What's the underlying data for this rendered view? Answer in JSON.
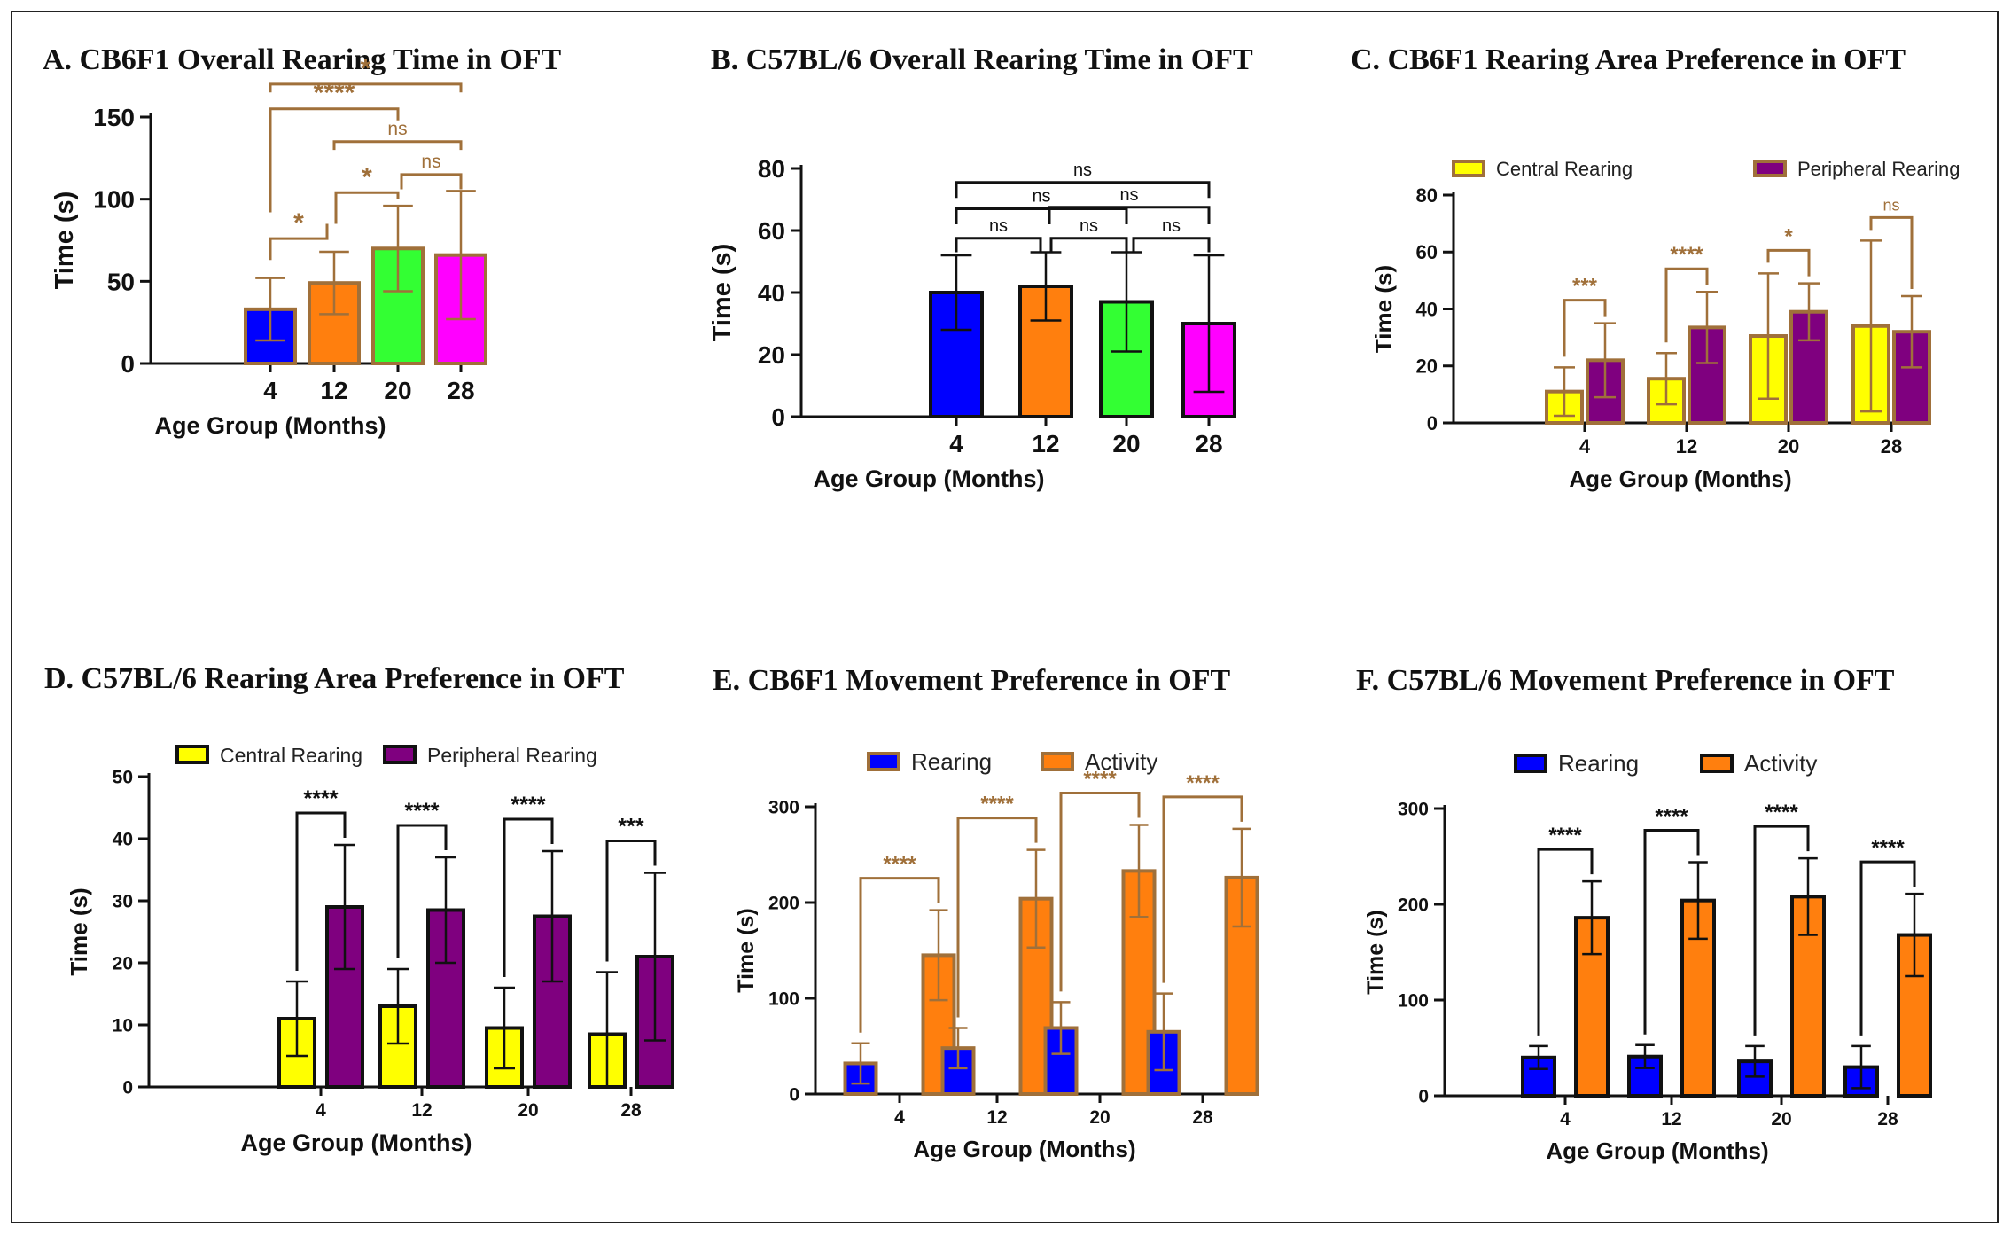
{
  "chart_data": [
    {
      "id": "A",
      "type": "bar",
      "title": "A.  CB6F1 Overall Rearing Time in OFT",
      "xlabel": "Age Group (Months)",
      "ylabel": "Time (s)",
      "ylim": [
        0,
        150
      ],
      "yticks": [
        "0",
        "50",
        "100",
        "150"
      ],
      "categories": [
        "4",
        "12",
        "20",
        "28"
      ],
      "values": [
        33,
        49,
        70,
        66
      ],
      "errors": [
        19,
        19,
        26,
        39
      ],
      "bar_colors": [
        "#0000ff",
        "#ff7f0e",
        "#33ff33",
        "#ff00ff"
      ],
      "bar_border": "#a0703a",
      "sig_color": "#a0703a",
      "comparisons": [
        {
          "a": 0,
          "b": 1,
          "label": "*"
        },
        {
          "a": 1,
          "b": 2,
          "label": "*"
        },
        {
          "a": 2,
          "b": 3,
          "label": "ns"
        },
        {
          "a": 1,
          "b": 3,
          "label": "ns"
        },
        {
          "a": 0,
          "b": 2,
          "label": "****"
        },
        {
          "a": 0,
          "b": 3,
          "label": "*"
        }
      ]
    },
    {
      "id": "B",
      "type": "bar",
      "title": "B.  C57BL/6 Overall Rearing Time in OFT",
      "xlabel": "Age Group (Months)",
      "ylabel": "Time (s)",
      "ylim": [
        0,
        80
      ],
      "yticks": [
        "0",
        "20",
        "40",
        "60",
        "80"
      ],
      "categories": [
        "4",
        "12",
        "20",
        "28"
      ],
      "values": [
        40,
        42,
        37,
        30
      ],
      "errors": [
        12,
        11,
        16,
        22
      ],
      "bar_colors": [
        "#0000ff",
        "#ff7f0e",
        "#33ff33",
        "#ff00ff"
      ],
      "bar_border": "#111111",
      "sig_color": "#111111",
      "comparisons": [
        {
          "a": 0,
          "b": 1,
          "label": "ns"
        },
        {
          "a": 1,
          "b": 2,
          "label": "ns"
        },
        {
          "a": 2,
          "b": 3,
          "label": "ns"
        },
        {
          "a": 0,
          "b": 2,
          "label": "ns"
        },
        {
          "a": 1,
          "b": 3,
          "label": "ns"
        },
        {
          "a": 0,
          "b": 3,
          "label": "ns"
        }
      ]
    },
    {
      "id": "C",
      "type": "bar",
      "title": "C. CB6F1 Rearing Area Preference in OFT",
      "xlabel": "Age Group (Months)",
      "ylabel": "Time (s)",
      "ylim": [
        0,
        80
      ],
      "yticks": [
        "0",
        "20",
        "40",
        "60",
        "80"
      ],
      "categories": [
        "4",
        "12",
        "20",
        "28"
      ],
      "bar_border": "#a0703a",
      "sig_color": "#a0703a",
      "legend": [
        "Central Rearing",
        "Peripheral Rearing"
      ],
      "series": [
        {
          "name": "Central Rearing",
          "color": "#ffff00",
          "values": [
            11,
            15.5,
            30.5,
            34
          ],
          "errors": [
            8.5,
            9,
            22,
            30
          ]
        },
        {
          "name": "Peripheral Rearing",
          "color": "#7f007f",
          "values": [
            22,
            33.5,
            39,
            32
          ],
          "errors": [
            13,
            12.5,
            10,
            12.5
          ]
        }
      ],
      "comparisons": [
        "***",
        "****",
        "*",
        "ns"
      ]
    },
    {
      "id": "D",
      "type": "bar",
      "title": "D. C57BL/6 Rearing Area Preference in OFT",
      "xlabel": "Age Group (Months)",
      "ylabel": "Time (s)",
      "ylim": [
        0,
        50
      ],
      "yticks": [
        "0",
        "10",
        "20",
        "30",
        "40",
        "50"
      ],
      "categories": [
        "4",
        "12",
        "20",
        "28"
      ],
      "bar_border": "#111111",
      "sig_color": "#111111",
      "legend": [
        "Central Rearing",
        "Peripheral Rearing"
      ],
      "series": [
        {
          "name": "Central Rearing",
          "color": "#ffff00",
          "values": [
            11,
            13,
            9.5,
            8.5
          ],
          "errors": [
            6,
            6,
            6.5,
            10
          ]
        },
        {
          "name": "Peripheral Rearing",
          "color": "#7f007f",
          "values": [
            29,
            28.5,
            27.5,
            21
          ],
          "errors": [
            10,
            8.5,
            10.5,
            13.5
          ]
        }
      ],
      "comparisons": [
        "****",
        "****",
        "****",
        "***"
      ]
    },
    {
      "id": "E",
      "type": "bar",
      "title": "E. CB6F1 Movement Preference in OFT",
      "xlabel": "Age Group (Months)",
      "ylabel": "Time (s)",
      "ylim": [
        0,
        300
      ],
      "yticks": [
        "0",
        "100",
        "200",
        "300"
      ],
      "categories": [
        "4",
        "12",
        "20",
        "28"
      ],
      "bar_border": "#a0703a",
      "sig_color": "#a0703a",
      "legend": [
        "Rearing",
        "Activity"
      ],
      "series": [
        {
          "name": "Rearing",
          "color": "#0000ff",
          "values": [
            32,
            48,
            69,
            65
          ],
          "errors": [
            21,
            21,
            27,
            40
          ]
        },
        {
          "name": "Activity",
          "color": "#ff7f0e",
          "values": [
            145,
            204,
            233,
            226
          ],
          "errors": [
            47,
            51,
            48,
            51
          ]
        }
      ],
      "comparisons": [
        "****",
        "****",
        "****",
        "****"
      ]
    },
    {
      "id": "F",
      "type": "bar",
      "title": "F. C57BL/6 Movement Preference in OFT",
      "xlabel": "Age Group (Months)",
      "ylabel": "Time (s)",
      "ylim": [
        0,
        300
      ],
      "yticks": [
        "0",
        "100",
        "200",
        "300"
      ],
      "categories": [
        "4",
        "12",
        "20",
        "28"
      ],
      "bar_border": "#111111",
      "sig_color": "#111111",
      "legend": [
        "Rearing",
        "Activity"
      ],
      "series": [
        {
          "name": "Rearing",
          "color": "#0000ff",
          "values": [
            40,
            41,
            36,
            30
          ],
          "errors": [
            12,
            12,
            16,
            22
          ]
        },
        {
          "name": "Activity",
          "color": "#ff7f0e",
          "values": [
            186,
            204,
            208,
            168
          ],
          "errors": [
            38,
            40,
            40,
            43
          ]
        }
      ],
      "comparisons": [
        "****",
        "****",
        "****",
        "****"
      ]
    }
  ]
}
